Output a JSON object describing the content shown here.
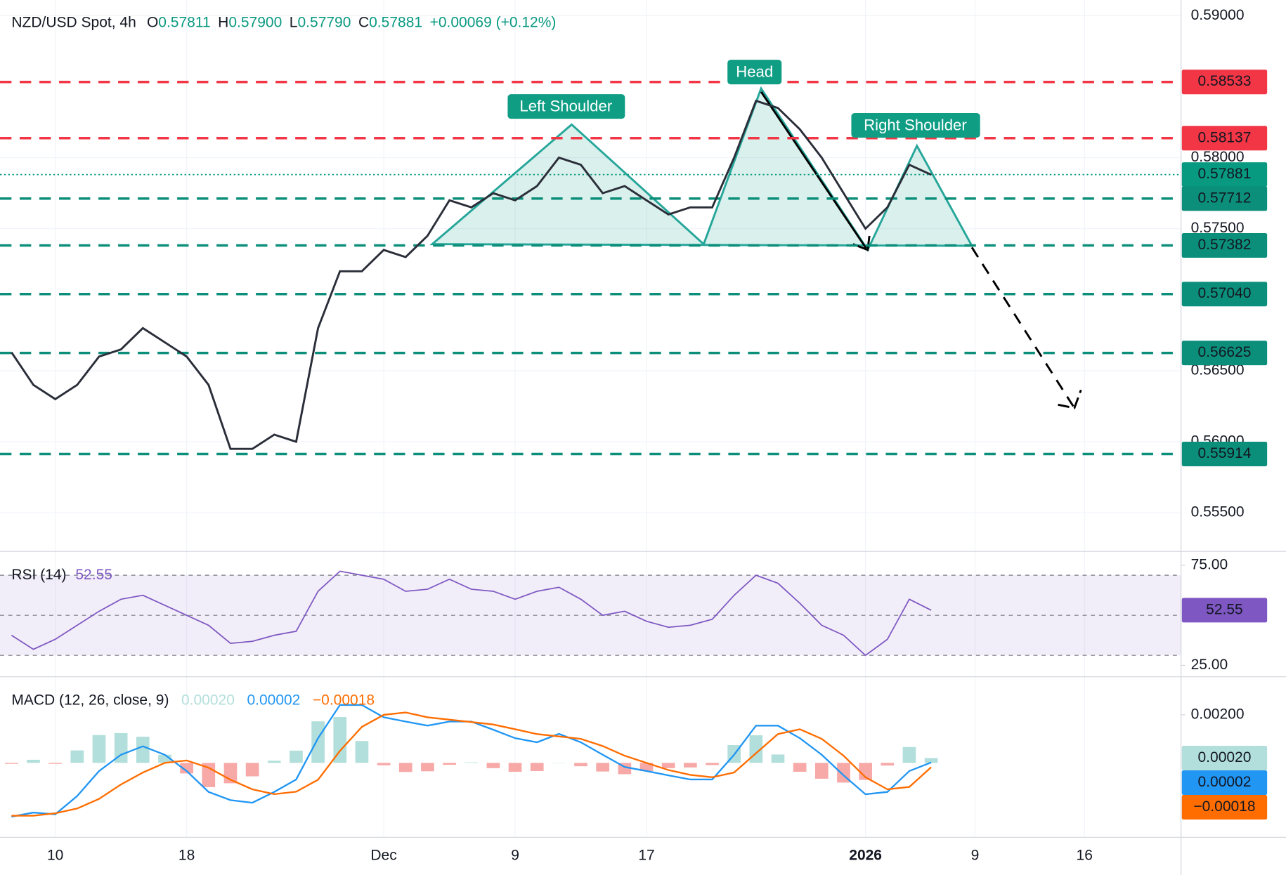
{
  "chart_data": [
    {
      "type": "line",
      "header": {
        "symbol": "NZD/USD Spot, 4h",
        "open_label": "O",
        "open": "0.57811",
        "high_label": "H",
        "high": "0.57900",
        "low_label": "L",
        "low": "0.57790",
        "close_label": "C",
        "close": "0.57881",
        "change": "+0.00069 (+0.12%)"
      },
      "annotations": [
        "Left Shoulder",
        "Head",
        "Right Shoulder"
      ],
      "categories": [
        null,
        null,
        "10",
        null,
        null,
        null,
        null,
        null,
        "18",
        null,
        null,
        null,
        null,
        null,
        null,
        null,
        null,
        "Dec",
        null,
        null,
        null,
        null,
        null,
        "9",
        null,
        null,
        null,
        null,
        null,
        "17",
        null,
        null,
        null,
        null,
        null,
        null,
        null,
        null,
        null,
        "2026",
        null,
        null,
        null,
        null,
        "9",
        null,
        null,
        null,
        null,
        "16",
        null,
        null,
        null,
        null
      ],
      "values": [
        0.5663,
        0.564,
        0.563,
        0.564,
        0.566,
        0.5665,
        0.568,
        0.567,
        0.566,
        0.564,
        0.5595,
        0.5595,
        0.5605,
        0.56,
        0.568,
        0.572,
        0.572,
        0.5735,
        0.573,
        0.5745,
        0.577,
        0.5765,
        0.5775,
        0.577,
        0.578,
        0.58,
        0.5795,
        0.5775,
        0.578,
        0.577,
        0.576,
        0.5765,
        0.5765,
        0.58,
        0.584,
        0.5835,
        0.582,
        0.58,
        0.5775,
        0.575,
        0.5765,
        0.5795,
        0.5788,
        null,
        null,
        null,
        null,
        null,
        null,
        null,
        null,
        null,
        null,
        null
      ],
      "color": "#2a2e39",
      "ylim": [
        0.55234,
        0.5911
      ],
      "yticks": [
        {
          "value": 0.59,
          "label": "0.59000"
        },
        {
          "value": 0.58,
          "label": "0.58000"
        },
        {
          "value": 0.575,
          "label": "0.57500"
        },
        {
          "value": 0.565,
          "label": "0.56500"
        },
        {
          "value": 0.56,
          "label": "0.56000"
        },
        {
          "value": 0.555,
          "label": "0.55500"
        }
      ],
      "levels": [
        {
          "value": 0.58533,
          "label": "0.58533",
          "color": "#f23645",
          "style": "dashed"
        },
        {
          "value": 0.58137,
          "label": "0.58137",
          "color": "#f23645",
          "style": "dashed"
        },
        {
          "value": 0.57881,
          "label": "0.57881",
          "color": "#089981",
          "style": "dotted"
        },
        {
          "value": 0.57712,
          "label": "0.57712",
          "color": "#0c8f7a",
          "style": "dashed"
        },
        {
          "value": 0.57382,
          "label": "0.57382",
          "color": "#0c8f7a",
          "style": "dashed"
        },
        {
          "value": 0.5704,
          "label": "0.57040",
          "color": "#0c8f7a",
          "style": "dashed"
        },
        {
          "value": 0.56625,
          "label": "0.56625",
          "color": "#0c8f7a",
          "style": "dashed"
        },
        {
          "value": 0.55914,
          "label": "0.55914",
          "color": "#0c8f7a",
          "style": "dashed"
        }
      ],
      "grid": true
    },
    {
      "type": "line",
      "title": "RSI (14)",
      "last_value_label": "52.55",
      "values": [
        40,
        33,
        38,
        45,
        52,
        58,
        60,
        55,
        50,
        45,
        36,
        37,
        40,
        42,
        62,
        72,
        70,
        68,
        62,
        63,
        68,
        63,
        62,
        58,
        62,
        64,
        58,
        50,
        52,
        47,
        44,
        45,
        48,
        60,
        70,
        66,
        56,
        45,
        40,
        30,
        38,
        58,
        52.55,
        null,
        null,
        null,
        null,
        null,
        null,
        null,
        null,
        null,
        null,
        null
      ],
      "color": "#7e57c2",
      "ylim": [
        19.3,
        81.1
      ],
      "yticks": [
        {
          "value": 75,
          "label": "75.00"
        },
        {
          "value": 25,
          "label": "25.00"
        }
      ],
      "bands": [
        70,
        50,
        30
      ]
    },
    {
      "type": "macd",
      "title": "MACD (12, 26, close, 9)",
      "series": [
        {
          "color": "#b2dfdb",
          "neg_color": "#f7a9a8",
          "last_label": "0.00020",
          "values": [
            -4e-05,
            0.00013,
            -4e-05,
            0.00052,
            0.00116,
            0.00124,
            0.00109,
            0.00034,
            -0.00044,
            -0.00101,
            -0.00085,
            -0.00056,
            9e-05,
            0.00051,
            0.00173,
            0.00191,
            0.00091,
            -0.0001,
            -0.00038,
            -0.00035,
            -8e-05,
            2e-05,
            -0.00022,
            -0.00037,
            -0.00034,
            1e-05,
            -0.00014,
            -0.00036,
            -0.00047,
            -0.00034,
            -0.00022,
            -0.00019,
            -9e-05,
            0.00074,
            0.00115,
            0.00035,
            -0.00037,
            -0.00066,
            -0.00082,
            -0.00071,
            -0.00011,
            0.00066,
            0.0002,
            null,
            null,
            null,
            null,
            null,
            null,
            null,
            null,
            null,
            null,
            null
          ]
        },
        {
          "color": "#2196f3",
          "last_label": "0.00002",
          "values": [
            -0.00224,
            -0.00207,
            -0.00214,
            -0.00138,
            -0.00034,
            0.00034,
            0.00069,
            0.00034,
            -0.00034,
            -0.00121,
            -0.00155,
            -0.00166,
            -0.00121,
            -0.00069,
            0.00103,
            0.00241,
            0.00241,
            0.0019,
            0.00172,
            0.00155,
            0.00172,
            0.00172,
            0.00138,
            0.00103,
            0.00086,
            0.00121,
            0.00086,
            0.00034,
            -0.00017,
            -0.00034,
            -0.00052,
            -0.00069,
            -0.00069,
            0.00034,
            0.00155,
            0.00155,
            0.00103,
            0.00034,
            -0.00052,
            -0.00131,
            -0.00121,
            -0.00034,
            2e-05,
            null,
            null,
            null,
            null,
            null,
            null,
            null,
            null,
            null,
            null,
            null
          ]
        },
        {
          "color": "#ff6d00",
          "last_label": "−0.00018",
          "values": [
            -0.0022,
            -0.0022,
            -0.0021,
            -0.0019,
            -0.0015,
            -0.0009,
            -0.0004,
            0.0,
            0.0001,
            -0.0002,
            -0.0007,
            -0.0011,
            -0.0013,
            -0.0012,
            -0.0007,
            0.0005,
            0.0015,
            0.002,
            0.0021,
            0.0019,
            0.0018,
            0.0017,
            0.0016,
            0.0014,
            0.0012,
            0.0011,
            0.001,
            0.0007,
            0.0003,
            0.0,
            -0.0003,
            -0.0005,
            -0.0006,
            -0.0004,
            0.0004,
            0.0012,
            0.0014,
            0.001,
            0.0003,
            -0.0006,
            -0.0011,
            -0.001,
            -0.00018,
            null,
            null,
            null,
            null,
            null,
            null,
            null,
            null,
            null,
            null,
            null
          ]
        }
      ],
      "ylim": [
        -0.0031,
        0.00352
      ],
      "yticks": [
        {
          "value": 0.002,
          "label": "0.00200"
        }
      ]
    }
  ]
}
